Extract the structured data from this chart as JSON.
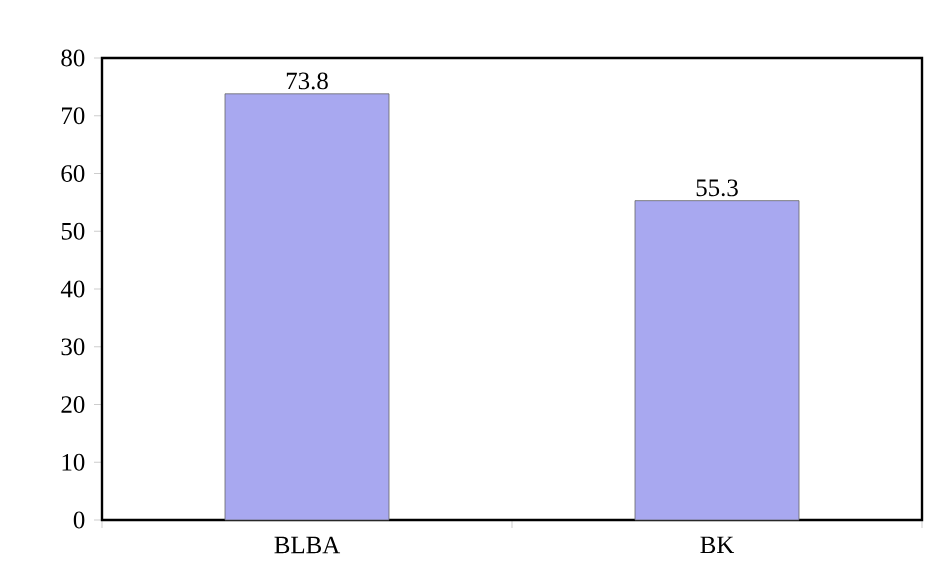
{
  "chart_data": {
    "type": "bar",
    "categories": [
      "BLBA",
      "BK"
    ],
    "values": [
      73.8,
      55.3
    ],
    "colors": [
      "#a8a8f0",
      "#a8a8f0"
    ],
    "ylim": [
      0,
      80
    ],
    "yticks": [
      0,
      10,
      20,
      30,
      40,
      50,
      60,
      70,
      80
    ],
    "data_labels": true,
    "grid": false
  }
}
